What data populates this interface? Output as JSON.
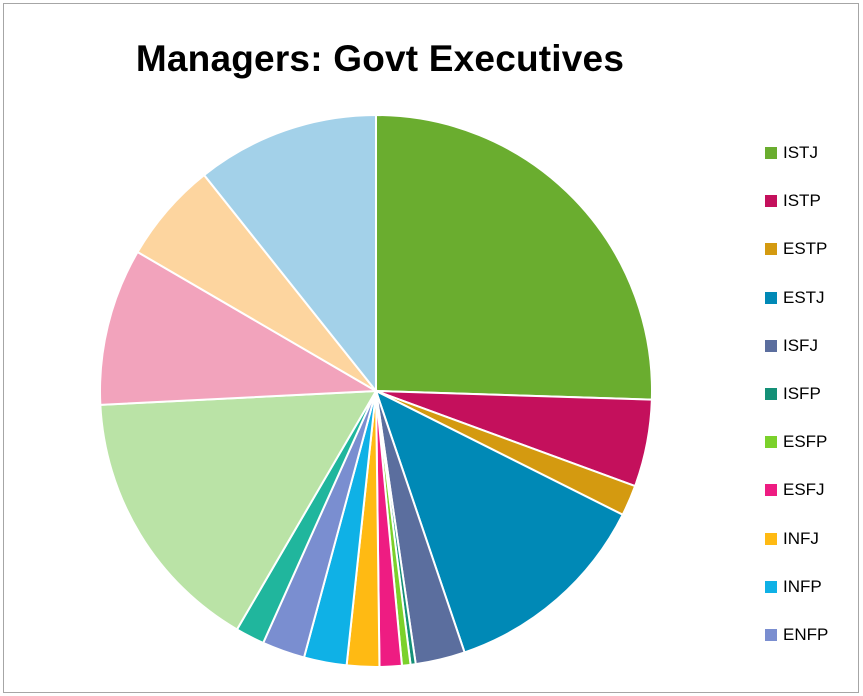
{
  "chart_data": {
    "type": "pie",
    "title": "Managers: Govt Executives",
    "legend_position": "right",
    "legend_visible_count": 11,
    "slices": [
      {
        "label": "ISTJ",
        "value": 25.5,
        "color": "#6aad2f"
      },
      {
        "label": "ISTP",
        "value": 5.1,
        "color": "#c4105c"
      },
      {
        "label": "ESTP",
        "value": 1.8,
        "color": "#d49a10"
      },
      {
        "label": "ESTJ",
        "value": 12.4,
        "color": "#0089b6"
      },
      {
        "label": "ISFJ",
        "value": 2.9,
        "color": "#5b6e9e"
      },
      {
        "label": "ISFP",
        "value": 0.3,
        "color": "#149077"
      },
      {
        "label": "ESFP",
        "value": 0.5,
        "color": "#7bd12b"
      },
      {
        "label": "ESFJ",
        "value": 1.3,
        "color": "#ee1c82"
      },
      {
        "label": "INFJ",
        "value": 1.9,
        "color": "#ffba13"
      },
      {
        "label": "INFP",
        "value": 2.5,
        "color": "#0fb1e6"
      },
      {
        "label": "ENFP",
        "value": 2.5,
        "color": "#7a8ed0"
      },
      {
        "label": "",
        "value": 1.7,
        "color": "#20b69d"
      },
      {
        "label": "",
        "value": 15.8,
        "color": "#bae3a6"
      },
      {
        "label": "",
        "value": 9.2,
        "color": "#f2a3bc"
      },
      {
        "label": "",
        "value": 5.9,
        "color": "#fdd59f"
      },
      {
        "label": "",
        "value": 10.7,
        "color": "#a3d1e9"
      }
    ]
  }
}
